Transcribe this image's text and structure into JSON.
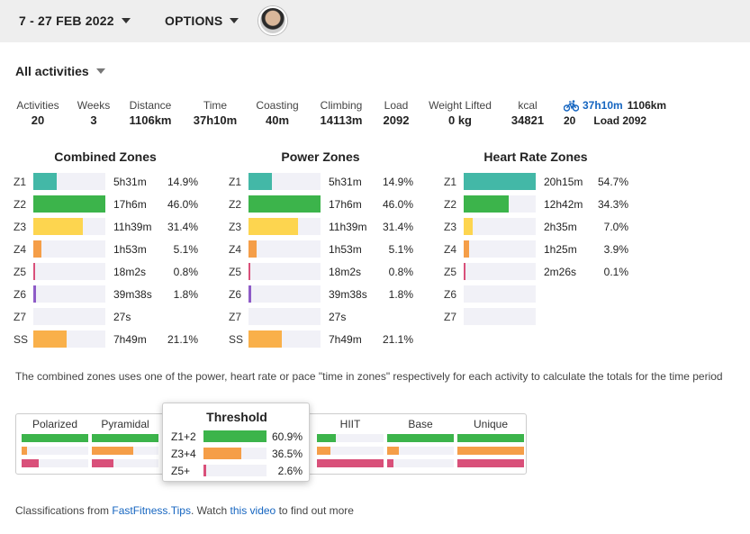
{
  "topbar": {
    "date_range": "7 - 27 FEB 2022",
    "options_label": "OPTIONS"
  },
  "filter": {
    "activities_label": "All activities"
  },
  "stats": [
    {
      "label": "Activities",
      "value": "20"
    },
    {
      "label": "Weeks",
      "value": "3"
    },
    {
      "label": "Distance",
      "value": "1106km"
    },
    {
      "label": "Time",
      "value": "37h10m"
    },
    {
      "label": "Coasting",
      "value": "40m"
    },
    {
      "label": "Climbing",
      "value": "14113m"
    },
    {
      "label": "Load",
      "value": "2092"
    },
    {
      "label": "Weight Lifted",
      "value": "0 kg"
    },
    {
      "label": "kcal",
      "value": "34821"
    }
  ],
  "ride": {
    "icon": "bicycle-icon",
    "duration": "37h10m",
    "distance": "1106km",
    "count": "20",
    "load": "Load 2092"
  },
  "colors": {
    "z1": "#43b8a7",
    "z2": "#3cb44b",
    "z3": "#fdd54f",
    "z4": "#f59e48",
    "z5": "#d9507a",
    "z6": "#8e5bc7",
    "ss": "#f9b04a",
    "link": "#1565c0"
  },
  "combined_zones": {
    "title": "Combined Zones",
    "rows": [
      {
        "zone": "Z1",
        "time": "5h31m",
        "pct": "14.9%",
        "value": 0.149
      },
      {
        "zone": "Z2",
        "time": "17h6m",
        "pct": "46.0%",
        "value": 0.46
      },
      {
        "zone": "Z3",
        "time": "11h39m",
        "pct": "31.4%",
        "value": 0.314
      },
      {
        "zone": "Z4",
        "time": "1h53m",
        "pct": "5.1%",
        "value": 0.051
      },
      {
        "zone": "Z5",
        "time": "18m2s",
        "pct": "0.8%",
        "value": 0.008
      },
      {
        "zone": "Z6",
        "time": "39m38s",
        "pct": "1.8%",
        "value": 0.018
      },
      {
        "zone": "Z7",
        "time": "27s",
        "pct": "",
        "value": 0
      },
      {
        "zone": "SS",
        "time": "7h49m",
        "pct": "21.1%",
        "value": 0.211
      }
    ]
  },
  "power_zones": {
    "title": "Power Zones",
    "rows": [
      {
        "zone": "Z1",
        "time": "5h31m",
        "pct": "14.9%",
        "value": 0.149
      },
      {
        "zone": "Z2",
        "time": "17h6m",
        "pct": "46.0%",
        "value": 0.46
      },
      {
        "zone": "Z3",
        "time": "11h39m",
        "pct": "31.4%",
        "value": 0.314
      },
      {
        "zone": "Z4",
        "time": "1h53m",
        "pct": "5.1%",
        "value": 0.051
      },
      {
        "zone": "Z5",
        "time": "18m2s",
        "pct": "0.8%",
        "value": 0.008
      },
      {
        "zone": "Z6",
        "time": "39m38s",
        "pct": "1.8%",
        "value": 0.018
      },
      {
        "zone": "Z7",
        "time": "27s",
        "pct": "",
        "value": 0
      },
      {
        "zone": "SS",
        "time": "7h49m",
        "pct": "21.1%",
        "value": 0.211
      }
    ]
  },
  "hr_zones": {
    "title": "Heart Rate Zones",
    "rows": [
      {
        "zone": "Z1",
        "time": "20h15m",
        "pct": "54.7%",
        "value": 0.547
      },
      {
        "zone": "Z2",
        "time": "12h42m",
        "pct": "34.3%",
        "value": 0.343
      },
      {
        "zone": "Z3",
        "time": "2h35m",
        "pct": "7.0%",
        "value": 0.07
      },
      {
        "zone": "Z4",
        "time": "1h25m",
        "pct": "3.9%",
        "value": 0.039
      },
      {
        "zone": "Z5",
        "time": "2m26s",
        "pct": "0.1%",
        "value": 0.001
      },
      {
        "zone": "Z6",
        "time": "",
        "pct": "",
        "value": 0
      },
      {
        "zone": "Z7",
        "time": "",
        "pct": "",
        "value": 0
      }
    ]
  },
  "note": "The combined zones uses one of the power, heart rate or pace \"time in zones\" respectively for each activity to calculate the totals for the time period",
  "classifications": [
    {
      "name": "Polarized",
      "bars": [
        1.0,
        0.08,
        0.25
      ]
    },
    {
      "name": "Pyramidal",
      "bars": [
        1.0,
        0.62,
        0.32
      ]
    },
    {
      "name": "HIIT",
      "bars": [
        0.28,
        0.2,
        1.0
      ]
    },
    {
      "name": "Base",
      "bars": [
        1.0,
        0.18,
        0.1
      ]
    },
    {
      "name": "Unique",
      "bars": [
        1.0,
        1.0,
        1.0
      ]
    }
  ],
  "threshold_popup": {
    "title": "Threshold",
    "rows": [
      {
        "label": "Z1+2",
        "value": "60.9%",
        "fill": 0.609
      },
      {
        "label": "Z3+4",
        "value": "36.5%",
        "fill": 0.365
      },
      {
        "label": "Z5+",
        "value": "2.6%",
        "fill": 0.026
      }
    ]
  },
  "footer": {
    "prefix": "Classifications from ",
    "link1": "FastFitness.Tips",
    "middle": ". Watch ",
    "link2": "this video",
    "suffix": " to find out more"
  }
}
